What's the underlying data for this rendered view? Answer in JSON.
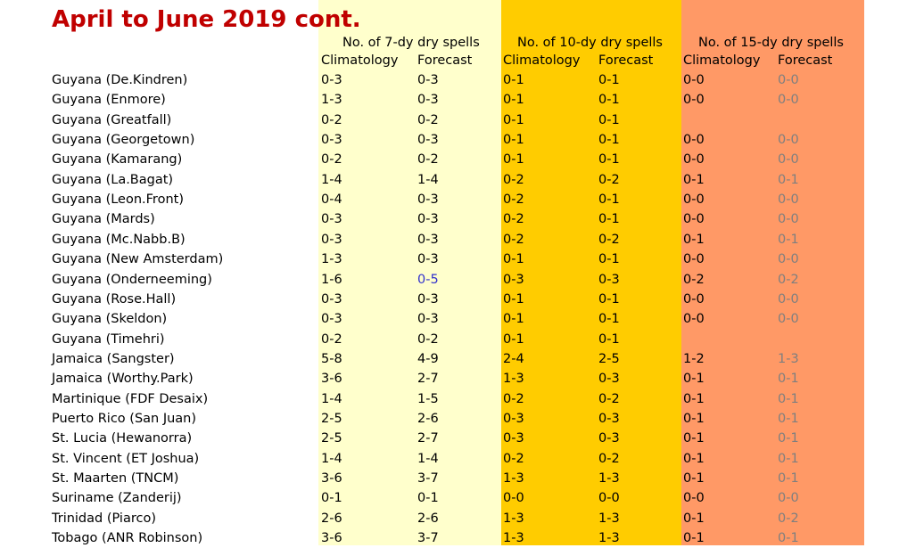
{
  "title": "April to June 2019 cont.",
  "groups": {
    "g7": "No. of 7-dy dry spells",
    "g10": "No. of 10-dy dry spells",
    "g15": "No. of 15-dy dry spells"
  },
  "subheads": {
    "climatology": "Climatology",
    "forecast": "Forecast"
  },
  "colors": {
    "title": "#c00000",
    "band7": "#ffffcc",
    "band10": "#ffcc00",
    "band15": "#ff9966",
    "highlight": "#3333cc",
    "muted": "#7f7f7f"
  },
  "rows": [
    {
      "station": "Guyana (De.Kindren)",
      "c7": "0-3",
      "f7": "0-3",
      "c10": "0-1",
      "f10": "0-1",
      "c15": "0-0",
      "f15": "0-0"
    },
    {
      "station": "Guyana (Enmore)",
      "c7": "1-3",
      "f7": "0-3",
      "c10": "0-1",
      "f10": "0-1",
      "c15": "0-0",
      "f15": "0-0"
    },
    {
      "station": "Guyana (Greatfall)",
      "c7": "0-2",
      "f7": "0-2",
      "c10": "0-1",
      "f10": "0-1",
      "c15": "",
      "f15": ""
    },
    {
      "station": "Guyana (Georgetown)",
      "c7": "0-3",
      "f7": "0-3",
      "c10": "0-1",
      "f10": "0-1",
      "c15": "0-0",
      "f15": "0-0"
    },
    {
      "station": "Guyana (Kamarang)",
      "c7": "0-2",
      "f7": "0-2",
      "c10": "0-1",
      "f10": "0-1",
      "c15": "0-0",
      "f15": "0-0"
    },
    {
      "station": "Guyana (La.Bagat)",
      "c7": "1-4",
      "f7": "1-4",
      "c10": "0-2",
      "f10": "0-2",
      "c15": "0-1",
      "f15": "0-1"
    },
    {
      "station": "Guyana (Leon.Front)",
      "c7": "0-4",
      "f7": "0-3",
      "c10": "0-2",
      "f10": "0-1",
      "c15": "0-0",
      "f15": "0-0"
    },
    {
      "station": "Guyana (Mards)",
      "c7": "0-3",
      "f7": "0-3",
      "c10": "0-2",
      "f10": "0-1",
      "c15": "0-0",
      "f15": "0-0"
    },
    {
      "station": "Guyana (Mc.Nabb.B)",
      "c7": "0-3",
      "f7": "0-3",
      "c10": "0-2",
      "f10": "0-2",
      "c15": "0-1",
      "f15": "0-1"
    },
    {
      "station": "Guyana (New Amsterdam)",
      "c7": "1-3",
      "f7": "0-3",
      "c10": "0-1",
      "f10": "0-1",
      "c15": "0-0",
      "f15": "0-0"
    },
    {
      "station": "Guyana (Onderneeming)",
      "c7": "1-6",
      "f7": "0-5",
      "c10": "0-3",
      "f10": "0-3",
      "c15": "0-2",
      "f15": "0-2"
    },
    {
      "station": "Guyana (Rose.Hall)",
      "c7": "0-3",
      "f7": "0-3",
      "c10": "0-1",
      "f10": "0-1",
      "c15": "0-0",
      "f15": "0-0"
    },
    {
      "station": "Guyana (Skeldon)",
      "c7": "0-3",
      "f7": "0-3",
      "c10": "0-1",
      "f10": "0-1",
      "c15": "0-0",
      "f15": "0-0"
    },
    {
      "station": "Guyana (Timehri)",
      "c7": "0-2",
      "f7": "0-2",
      "c10": "0-1",
      "f10": "0-1",
      "c15": "",
      "f15": ""
    },
    {
      "station": "Jamaica (Sangster)",
      "c7": "5-8",
      "f7": "4-9",
      "c10": "2-4",
      "f10": "2-5",
      "c15": "1-2",
      "f15": "1-3"
    },
    {
      "station": "Jamaica (Worthy.Park)",
      "c7": "3-6",
      "f7": "2-7",
      "c10": "1-3",
      "f10": "0-3",
      "c15": "0-1",
      "f15": "0-1"
    },
    {
      "station": "Martinique (FDF Desaix)",
      "c7": "1-4",
      "f7": "1-5",
      "c10": "0-2",
      "f10": "0-2",
      "c15": "0-1",
      "f15": "0-1"
    },
    {
      "station": "Puerto Rico (San Juan)",
      "c7": "2-5",
      "f7": "2-6",
      "c10": "0-3",
      "f10": "0-3",
      "c15": "0-1",
      "f15": "0-1"
    },
    {
      "station": "St. Lucia (Hewanorra)",
      "c7": "2-5",
      "f7": "2-7",
      "c10": "0-3",
      "f10": "0-3",
      "c15": "0-1",
      "f15": "0-1"
    },
    {
      "station": "St. Vincent (ET Joshua)",
      "c7": "1-4",
      "f7": "1-4",
      "c10": "0-2",
      "f10": "0-2",
      "c15": "0-1",
      "f15": "0-1"
    },
    {
      "station": "St. Maarten (TNCM)",
      "c7": "3-6",
      "f7": "3-7",
      "c10": "1-3",
      "f10": "1-3",
      "c15": "0-1",
      "f15": "0-1"
    },
    {
      "station": "Suriname (Zanderij)",
      "c7": "0-1",
      "f7": "0-1",
      "c10": "0-0",
      "f10": "0-0",
      "c15": "0-0",
      "f15": "0-0"
    },
    {
      "station": "Trinidad (Piarco)",
      "c7": "2-6",
      "f7": "2-6",
      "c10": "1-3",
      "f10": "1-3",
      "c15": "0-1",
      "f15": "0-2"
    },
    {
      "station": "Tobago (ANR Robinson)",
      "c7": "3-6",
      "f7": "3-7",
      "c10": "1-3",
      "f10": "1-3",
      "c15": "0-1",
      "f15": "0-1"
    }
  ]
}
